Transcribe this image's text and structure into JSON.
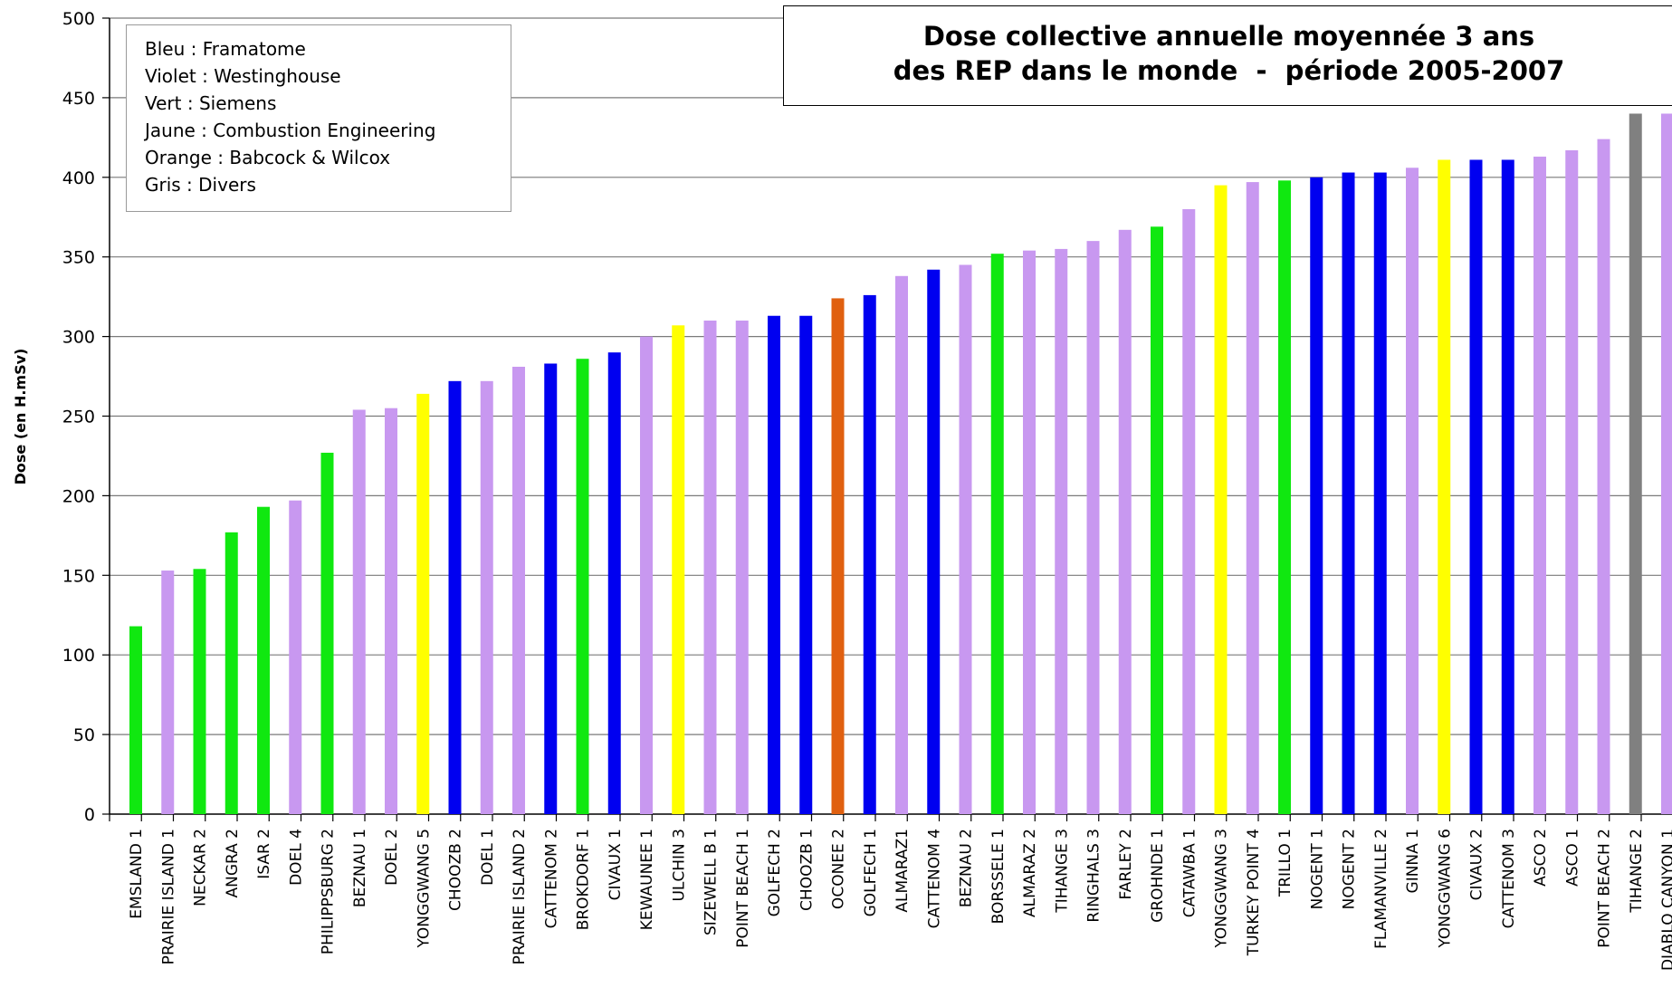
{
  "chart_data": {
    "type": "bar",
    "title_lines": [
      "Dose collective annuelle moyennée 3 ans",
      "des REP dans le monde  -  période 2005-2007"
    ],
    "ylabel": "Dose (en H.mSv)",
    "xlabel": "",
    "ylim": [
      0,
      500
    ],
    "yticks": [
      0,
      50,
      100,
      150,
      200,
      250,
      300,
      350,
      400,
      450,
      500
    ],
    "grid": true,
    "legend_placement": "top-left",
    "legend_lines": [
      "Bleu : Framatome",
      "Violet : Westinghouse",
      "Vert : Siemens",
      "Jaune : Combustion Engineering",
      "Orange : Babcock & Wilcox",
      "Gris : Divers"
    ],
    "palette": {
      "F": "#0000f0",
      "W": "#c898f0",
      "S": "#10e810",
      "C": "#ffff00",
      "B": "#e06010",
      "D": "#808080"
    },
    "categories": [
      "EMSLAND 1",
      "PRAIRIE ISLAND 1",
      "NECKAR 2",
      "ANGRA 2",
      "ISAR 2",
      "DOEL 4",
      "PHILIPPSBURG 2",
      "BEZNAU 1",
      "DOEL 2",
      "YONGGWANG 5",
      "CHOOZB 2",
      "DOEL 1",
      "PRAIRIE ISLAND 2",
      "CATTENOM 2",
      "BROKDORF 1",
      "CIVAUX 1",
      "KEWAUNEE 1",
      "ULCHIN 3",
      "SIZEWELL B 1",
      "POINT BEACH 1",
      "GOLFECH 2",
      "CHOOZB 1",
      "OCONEE 2",
      "GOLFECH 1",
      "ALMARAZ1",
      "CATTENOM 4",
      "BEZNAU 2",
      "BORSSELE 1",
      "ALMARAZ 2",
      "TIHANGE 3",
      "RINGHALS 3",
      "FARLEY 2",
      "GROHNDE 1",
      "CATAWBA 1",
      "YONGGWANG 3",
      "TURKEY POINT 4",
      "TRILLO 1",
      "NOGENT 1",
      "NOGENT 2",
      "FLAMANVILLE 2",
      "GINNA 1",
      "YONGGWANG 6",
      "CIVAUX 2",
      "CATTENOM 3",
      "ASCO 2",
      "ASCO 1",
      "POINT BEACH 2",
      "TIHANGE 2",
      "DIABLO CANYON 1"
    ],
    "values": [
      118,
      153,
      154,
      177,
      193,
      197,
      227,
      254,
      255,
      264,
      272,
      272,
      281,
      283,
      286,
      290,
      300,
      307,
      310,
      310,
      313,
      313,
      324,
      326,
      338,
      342,
      345,
      352,
      354,
      355,
      360,
      367,
      369,
      380,
      395,
      397,
      398,
      400,
      403,
      403,
      406,
      411,
      411,
      411,
      413,
      417,
      424,
      440,
      440
    ],
    "groups": [
      "S",
      "W",
      "S",
      "S",
      "S",
      "W",
      "S",
      "W",
      "W",
      "C",
      "F",
      "W",
      "W",
      "F",
      "S",
      "F",
      "W",
      "C",
      "W",
      "W",
      "F",
      "F",
      "B",
      "F",
      "W",
      "F",
      "W",
      "S",
      "W",
      "W",
      "W",
      "W",
      "S",
      "W",
      "C",
      "W",
      "S",
      "F",
      "F",
      "F",
      "W",
      "C",
      "F",
      "F",
      "W",
      "W",
      "W",
      "D",
      "W"
    ]
  }
}
